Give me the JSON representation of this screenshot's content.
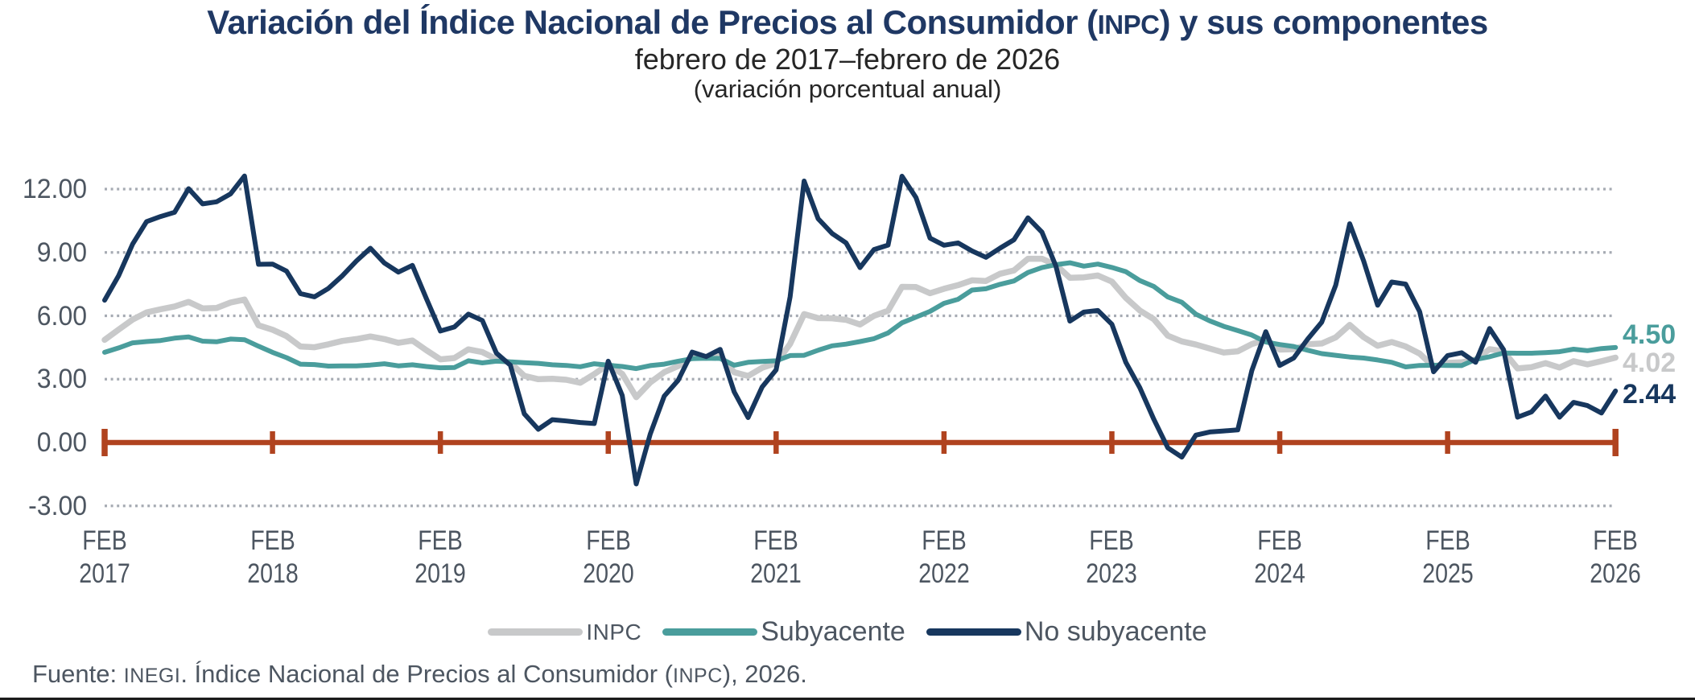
{
  "title": {
    "part1": "Variación del Índice Nacional de Precios al Consumidor (",
    "acronym": "INPC",
    "part2": ") y sus componentes"
  },
  "subtitle": "febrero de 2017–febrero de 2026",
  "subtitle2": "(variación porcentual anual)",
  "source": {
    "prefix": "Fuente: ",
    "org": "INEGI",
    "mid": ". Índice Nacional de Precios al Consumidor (",
    "acronym": "INPC",
    "suffix": "), 2026."
  },
  "colors": {
    "title_navy": "#1F3864",
    "axis_text": "#4D5661",
    "gridline": "#A6ABB3",
    "zero_axis_red": "#B0431F",
    "inpc_gray": "#C8C9CA",
    "subyacente_teal": "#4A9D9C",
    "no_subyacente_navy": "#17375E"
  },
  "legend": [
    {
      "label": "INPC",
      "color": "#C8C9CA",
      "small_caps": true
    },
    {
      "label": "Subyacente",
      "color": "#4A9D9C",
      "small_caps": false
    },
    {
      "label": "No subyacente",
      "color": "#17375E",
      "small_caps": false
    }
  ],
  "chart_data": {
    "type": "line",
    "title": "Variación del Índice Nacional de Precios al Consumidor (INPC) y sus componentes",
    "subtitle": "febrero de 2017–febrero de 2026",
    "units": "(variación porcentual anual)",
    "x_unit": "monthly",
    "x_start": "FEB 2017",
    "x_end": "FEB 2026",
    "grid": "horizontal-dotted",
    "legend_position": "bottom-center",
    "ylim": [
      -3.5,
      13.2
    ],
    "y_ticks": [
      12.0,
      9.0,
      6.0,
      3.0,
      0.0,
      -3.0
    ],
    "y_tick_labels": [
      "12.00",
      "9.00",
      "6.00",
      "3.00",
      "0.00",
      "-3.00"
    ],
    "x_tick_labels": [
      {
        "month": "FEB",
        "year": "2017"
      },
      {
        "month": "FEB",
        "year": "2018"
      },
      {
        "month": "FEB",
        "year": "2019"
      },
      {
        "month": "FEB",
        "year": "2020"
      },
      {
        "month": "FEB",
        "year": "2021"
      },
      {
        "month": "FEB",
        "year": "2022"
      },
      {
        "month": "FEB",
        "year": "2023"
      },
      {
        "month": "FEB",
        "year": "2024"
      },
      {
        "month": "FEB",
        "year": "2025"
      },
      {
        "month": "FEB",
        "year": "2026"
      }
    ],
    "series": [
      {
        "name": "INPC",
        "color": "#C8C9CA",
        "width": 7.5,
        "values": [
          4.86,
          5.35,
          5.82,
          6.16,
          6.31,
          6.44,
          6.66,
          6.35,
          6.37,
          6.63,
          6.77,
          5.55,
          5.34,
          5.04,
          4.55,
          4.51,
          4.65,
          4.81,
          4.9,
          5.02,
          4.9,
          4.72,
          4.83,
          4.37,
          3.94,
          4.0,
          4.41,
          4.28,
          3.95,
          3.78,
          3.16,
          3.0,
          3.02,
          2.97,
          2.83,
          3.24,
          3.7,
          3.25,
          2.15,
          2.84,
          3.33,
          3.62,
          4.05,
          4.01,
          4.09,
          3.33,
          3.15,
          3.54,
          3.76,
          4.67,
          6.08,
          5.89,
          5.88,
          5.81,
          5.59,
          6.0,
          6.24,
          7.37,
          7.36,
          7.07,
          7.28,
          7.45,
          7.68,
          7.65,
          7.99,
          8.15,
          8.7,
          8.7,
          8.41,
          7.8,
          7.82,
          7.91,
          7.62,
          6.85,
          6.25,
          5.84,
          5.06,
          4.79,
          4.64,
          4.45,
          4.26,
          4.32,
          4.66,
          4.88,
          4.4,
          4.42,
          4.65,
          4.69,
          4.98,
          5.57,
          4.99,
          4.58,
          4.76,
          4.55,
          4.21,
          3.59,
          3.77,
          3.8,
          3.93,
          4.42,
          4.32,
          3.51,
          3.57,
          3.76,
          3.55,
          3.85,
          3.7,
          3.85,
          4.02
        ]
      },
      {
        "name": "Subyacente",
        "color": "#4A9D9C",
        "width": 6,
        "values": [
          4.27,
          4.48,
          4.72,
          4.78,
          4.83,
          4.94,
          5.0,
          4.8,
          4.77,
          4.9,
          4.87,
          4.56,
          4.27,
          4.02,
          3.71,
          3.69,
          3.62,
          3.63,
          3.63,
          3.67,
          3.73,
          3.63,
          3.68,
          3.6,
          3.54,
          3.55,
          3.87,
          3.77,
          3.85,
          3.82,
          3.78,
          3.75,
          3.68,
          3.65,
          3.59,
          3.73,
          3.66,
          3.6,
          3.5,
          3.64,
          3.71,
          3.85,
          3.97,
          3.99,
          3.98,
          3.66,
          3.8,
          3.84,
          3.87,
          4.12,
          4.13,
          4.37,
          4.58,
          4.66,
          4.78,
          4.92,
          5.19,
          5.67,
          5.94,
          6.21,
          6.59,
          6.78,
          7.22,
          7.28,
          7.49,
          7.65,
          8.05,
          8.28,
          8.42,
          8.51,
          8.35,
          8.45,
          8.29,
          8.09,
          7.67,
          7.39,
          6.89,
          6.64,
          6.08,
          5.76,
          5.5,
          5.3,
          5.09,
          4.76,
          4.64,
          4.55,
          4.37,
          4.21,
          4.13,
          4.05,
          4.0,
          3.91,
          3.8,
          3.58,
          3.65,
          3.66,
          3.65,
          3.64,
          3.93,
          4.06,
          4.24,
          4.23,
          4.23,
          4.26,
          4.3,
          4.42,
          4.35,
          4.45,
          4.5
        ]
      },
      {
        "name": "No subyacente",
        "color": "#17375E",
        "width": 6,
        "values": [
          6.74,
          7.9,
          9.4,
          10.46,
          10.7,
          10.9,
          12.02,
          11.3,
          11.4,
          11.77,
          12.62,
          8.44,
          8.45,
          8.12,
          7.05,
          6.9,
          7.3,
          7.9,
          8.6,
          9.2,
          8.5,
          8.07,
          8.39,
          6.81,
          5.28,
          5.47,
          6.08,
          5.78,
          4.24,
          3.66,
          1.36,
          0.63,
          1.08,
          1.02,
          0.95,
          0.9,
          3.85,
          2.23,
          -1.96,
          0.4,
          2.2,
          2.95,
          4.28,
          4.07,
          4.41,
          2.4,
          1.18,
          2.63,
          3.44,
          6.9,
          12.38,
          10.6,
          9.9,
          9.45,
          8.28,
          9.14,
          9.35,
          12.61,
          11.6,
          9.68,
          9.34,
          9.45,
          9.07,
          8.77,
          9.2,
          9.6,
          10.64,
          9.96,
          8.36,
          5.75,
          6.18,
          6.25,
          5.6,
          3.8,
          2.6,
          1.1,
          -0.25,
          -0.69,
          0.35,
          0.5,
          0.55,
          0.6,
          3.4,
          5.25,
          3.65,
          4.0,
          4.9,
          5.7,
          7.45,
          10.36,
          8.6,
          6.5,
          7.6,
          7.5,
          6.2,
          3.35,
          4.12,
          4.25,
          3.8,
          5.4,
          4.4,
          1.2,
          1.45,
          2.2,
          1.2,
          1.9,
          1.75,
          1.4,
          2.44
        ]
      }
    ],
    "end_labels": [
      {
        "series": "Subyacente",
        "text": "4.50",
        "value": 4.5,
        "color": "#4A9D9C"
      },
      {
        "series": "INPC",
        "text": "4.02",
        "value": 4.02,
        "color": "#C8C9CA"
      },
      {
        "series": "No subyacente",
        "text": "2.44",
        "value": 2.44,
        "color": "#17375E"
      }
    ]
  }
}
